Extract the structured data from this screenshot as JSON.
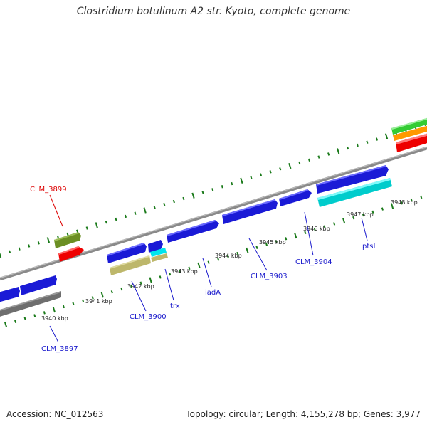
{
  "header": {
    "title": "Clostridium botulinum A2 str. Kyoto, complete genome"
  },
  "footer": {
    "accession": "Accession: NC_012563",
    "summary": "Topology: circular; Length: 4,155,278 bp; Genes: 3,977"
  },
  "colors": {
    "backbone": "#8c8c8c",
    "tick": "#1a7a1a",
    "blue_gene": "#1a1ad6",
    "label_blue": "#1a1acc",
    "label_red": "#dd0000"
  },
  "scale": {
    "tick_labels": [
      "3940 kbp",
      "3941 kbp",
      "3942 kbp",
      "3943 kbp",
      "3944 kbp",
      "3945 kbp",
      "3946 kbp",
      "3947 kbp",
      "3948 kbp"
    ]
  },
  "genes": {
    "labels": [
      {
        "name": "CLM_3899",
        "color": "red"
      },
      {
        "name": "CLM_3897",
        "color": "blue"
      },
      {
        "name": "CLM_3900",
        "color": "blue"
      },
      {
        "name": "trx",
        "color": "blue"
      },
      {
        "name": "iadA",
        "color": "blue"
      },
      {
        "name": "CLM_3903",
        "color": "blue"
      },
      {
        "name": "CLM_3904",
        "color": "blue"
      },
      {
        "name": "ptsI",
        "color": "blue"
      }
    ]
  }
}
